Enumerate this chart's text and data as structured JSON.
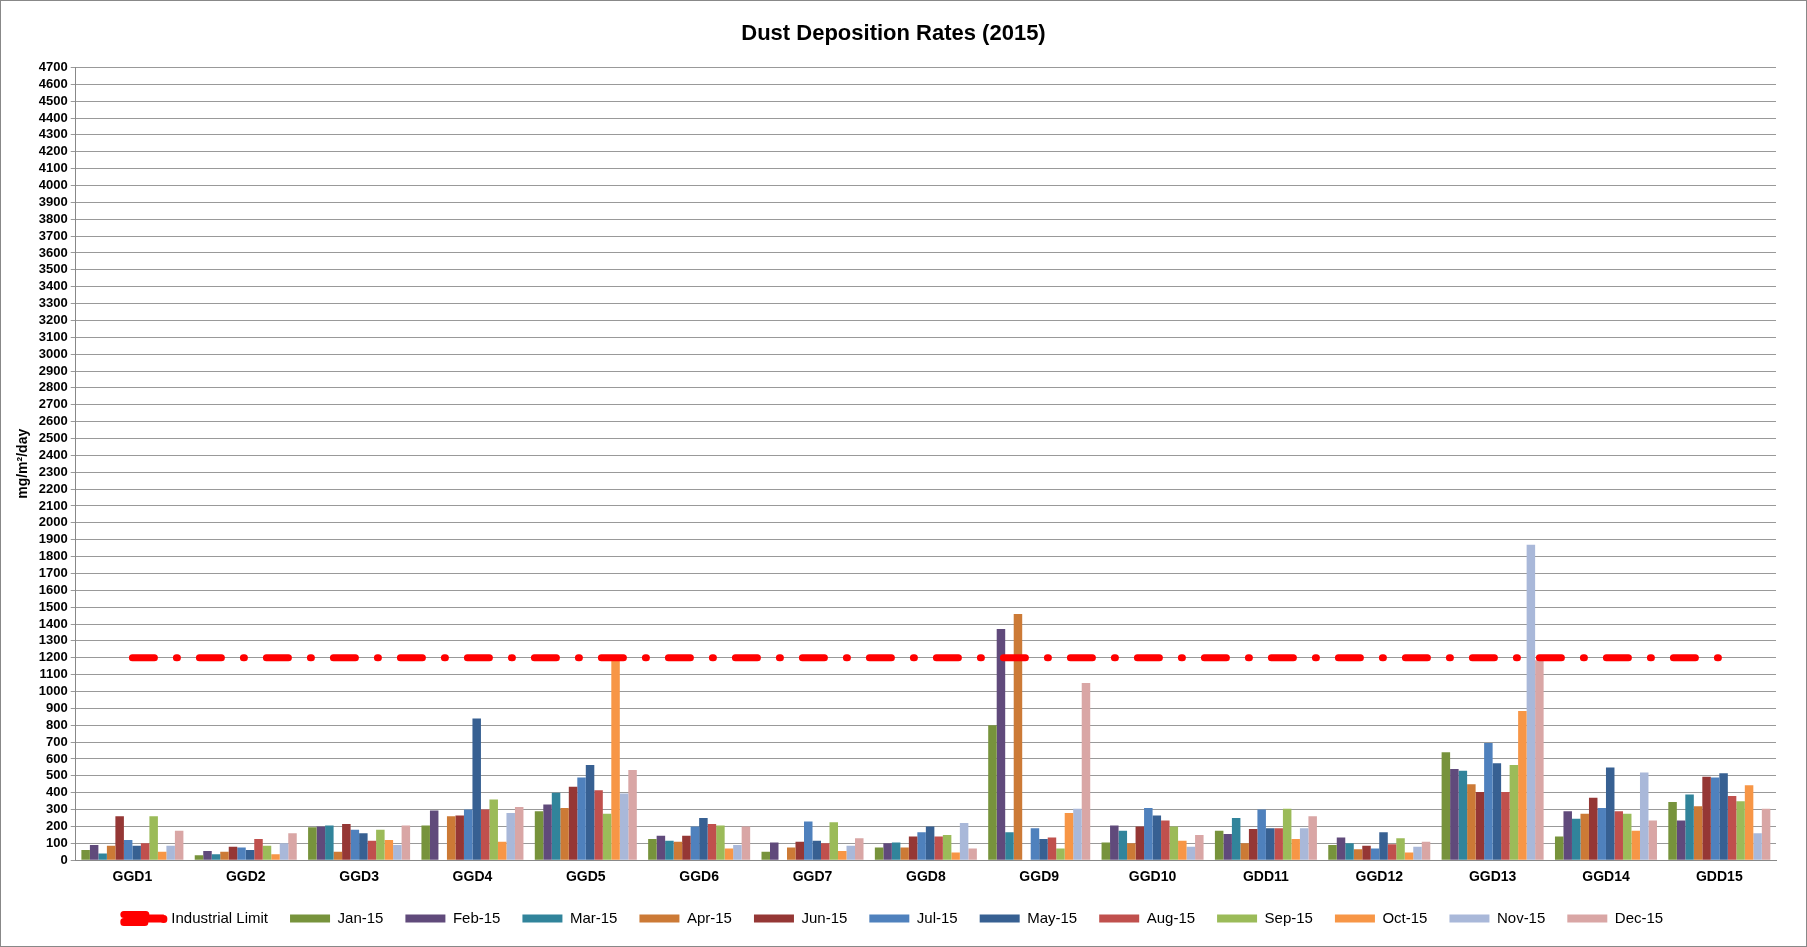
{
  "chart_data": {
    "type": "bar",
    "title": "Dust Deposition Rates (2015)",
    "ylabel": "mg/m²/day",
    "categories": [
      "GGD1",
      "GGD2",
      "GGD3",
      "GGD4",
      "GGD5",
      "GGD6",
      "GGD7",
      "GGD8",
      "GGD9",
      "GGD10",
      "GDD11",
      "GGD12",
      "GGD13",
      "GGD14",
      "GDD15"
    ],
    "series": [
      {
        "name": "Jan-15",
        "color": "#77933c",
        "values": [
          60,
          30,
          195,
          205,
          290,
          125,
          50,
          75,
          800,
          105,
          175,
          90,
          640,
          140,
          345
        ]
      },
      {
        "name": "Feb-15",
        "color": "#604a7b",
        "values": [
          90,
          55,
          200,
          295,
          330,
          145,
          105,
          100,
          1370,
          205,
          155,
          135,
          540,
          290,
          235
        ]
      },
      {
        "name": "Mar-15",
        "color": "#31849b",
        "values": [
          40,
          35,
          205,
          null,
          400,
          115,
          null,
          105,
          165,
          175,
          250,
          100,
          530,
          245,
          390
        ]
      },
      {
        "name": "Apr-15",
        "color": "#cc7a36",
        "values": [
          85,
          50,
          50,
          260,
          310,
          110,
          75,
          75,
          1460,
          100,
          100,
          65,
          450,
          275,
          320
        ]
      },
      {
        "name": "Jun-15",
        "color": "#953735",
        "values": [
          260,
          80,
          215,
          265,
          435,
          145,
          110,
          140,
          null,
          200,
          185,
          85,
          405,
          370,
          495
        ]
      },
      {
        "name": "Jul-15",
        "color": "#4f81bd",
        "values": [
          120,
          75,
          180,
          300,
          490,
          200,
          230,
          165,
          190,
          310,
          300,
          70,
          695,
          310,
          490
        ]
      },
      {
        "name": "May-15",
        "color": "#376092",
        "values": [
          85,
          60,
          160,
          840,
          565,
          250,
          115,
          200,
          125,
          265,
          190,
          165,
          575,
          550,
          515
        ]
      },
      {
        "name": "Aug-15",
        "color": "#c0504d",
        "values": [
          100,
          125,
          115,
          300,
          415,
          215,
          100,
          140,
          135,
          235,
          190,
          95,
          405,
          290,
          380
        ]
      },
      {
        "name": "Sep-15",
        "color": "#9bbb59",
        "values": [
          260,
          85,
          180,
          360,
          275,
          205,
          225,
          150,
          70,
          200,
          305,
          130,
          565,
          275,
          350
        ]
      },
      {
        "name": "Oct-15",
        "color": "#f79646",
        "values": [
          50,
          35,
          120,
          110,
          1190,
          70,
          55,
          45,
          280,
          115,
          125,
          45,
          885,
          175,
          445
        ]
      },
      {
        "name": "Nov-15",
        "color": "#a9b8d9",
        "values": [
          85,
          100,
          90,
          280,
          395,
          90,
          85,
          220,
          305,
          80,
          190,
          80,
          1870,
          520,
          160
        ]
      },
      {
        "name": "Dec-15",
        "color": "#d9a6a5",
        "values": [
          175,
          160,
          205,
          315,
          535,
          200,
          130,
          70,
          1050,
          150,
          260,
          110,
          1185,
          235,
          305
        ]
      },
      {
        "name": "Industrial Limit",
        "type": "line",
        "color": "#ff0000",
        "line_style": "dashed",
        "marker": "none",
        "values": [
          1200,
          1200,
          1200,
          1200,
          1200,
          1200,
          1200,
          1200,
          1200,
          1200,
          1200,
          1200,
          1200,
          1200,
          1200
        ]
      }
    ],
    "ylim": [
      0,
      4700
    ],
    "yticks": [
      0,
      100,
      200,
      300,
      400,
      500,
      600,
      700,
      800,
      900,
      1000,
      1100,
      1200,
      1300,
      1400,
      1500,
      1600,
      1700,
      1800,
      1900,
      2000,
      2100,
      2200,
      2300,
      2400,
      2500,
      2600,
      2700,
      2800,
      2900,
      3000,
      3100,
      3200,
      3300,
      3400,
      3500,
      3600,
      3700,
      3800,
      3900,
      4000,
      4100,
      4200,
      4300,
      4400,
      4500,
      4600,
      4700
    ],
    "grid": "y",
    "legend": "bottom"
  }
}
